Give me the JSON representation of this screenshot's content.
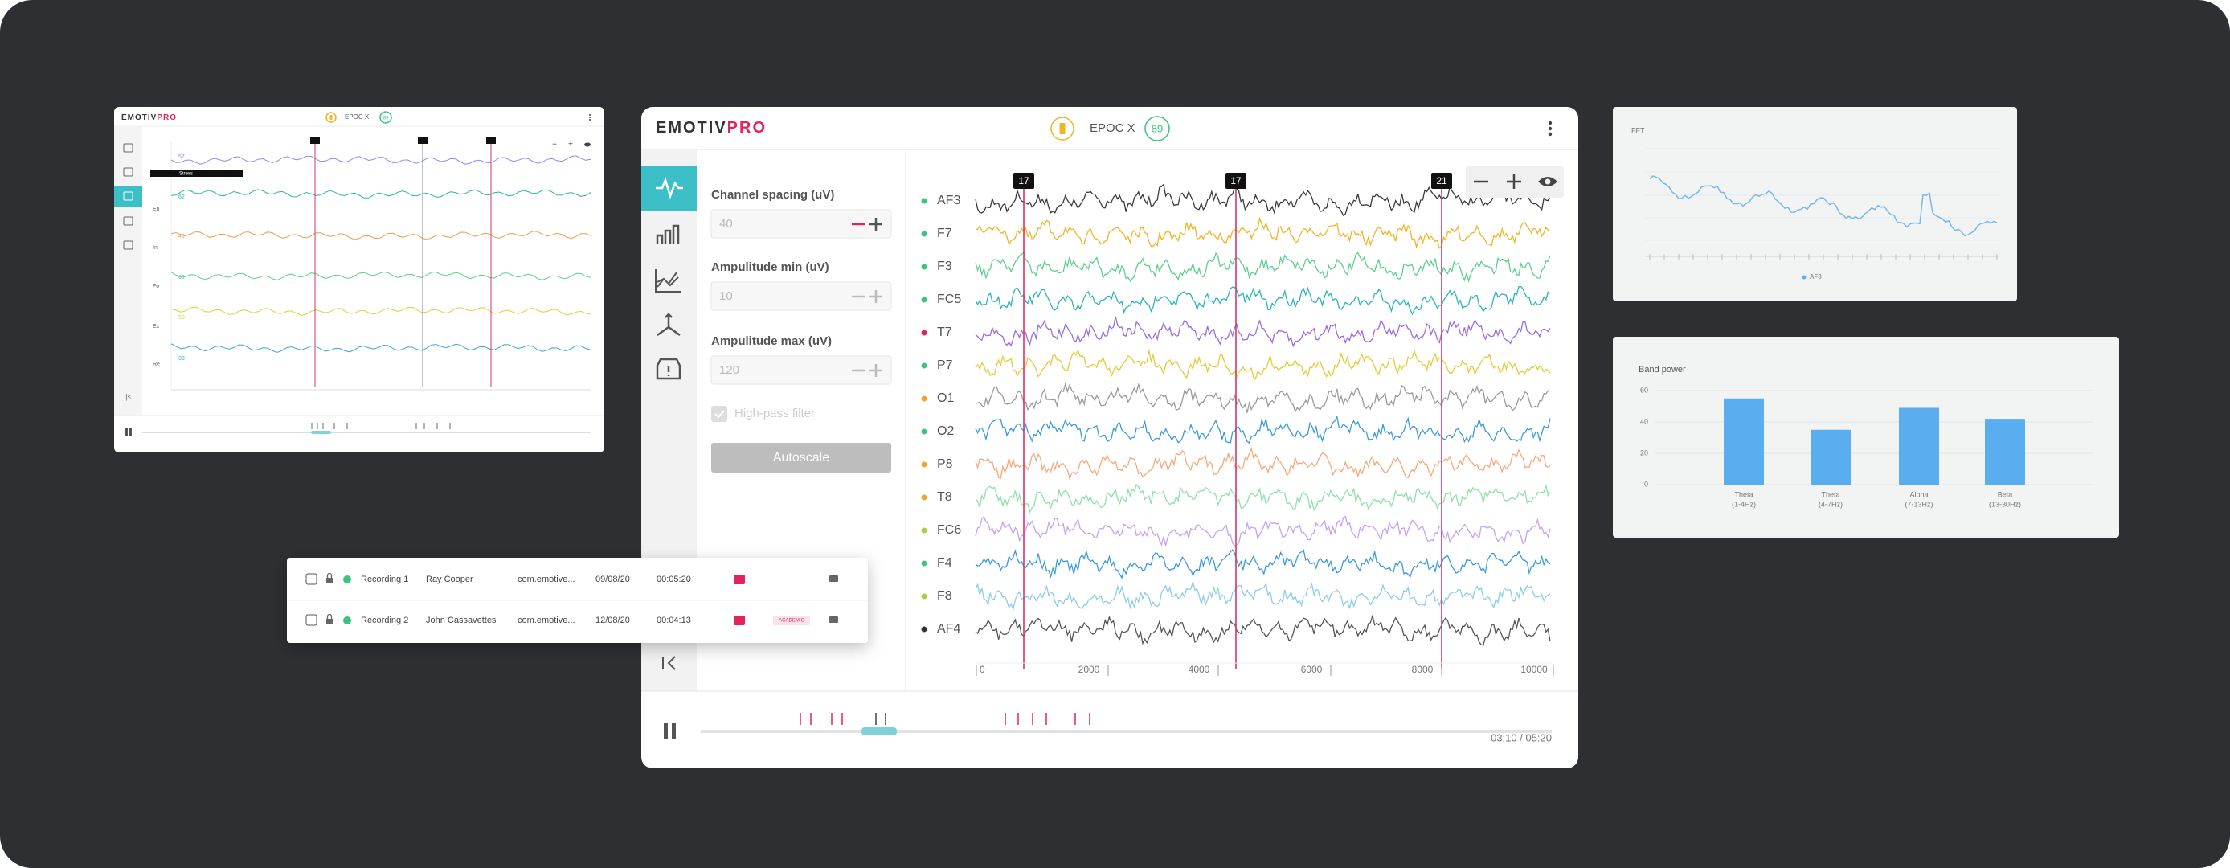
{
  "main_window": {
    "header": {
      "logo": "EMOTIV",
      "logo_accent": "PRO",
      "device": "EPOC X",
      "battery": "89"
    },
    "settings": {
      "channel_spacing": {
        "label": "Channel spacing (uV)",
        "value": "40"
      },
      "amplitude_min": {
        "label": "Ampulitude min (uV)",
        "value": "10"
      },
      "amplitude_max": {
        "label": "Ampulitude max (uV)",
        "value": "120"
      },
      "high_pass_filter": "High-pass filter",
      "autoscale": "Autoscale"
    },
    "channels": [
      {
        "name": "AF3",
        "color": "#3a3a3a",
        "dot": "#3ac47d"
      },
      {
        "name": "F7",
        "color": "#f0b429",
        "dot": "#3ac47d"
      },
      {
        "name": "F3",
        "color": "#5ccf8e",
        "dot": "#3ac47d"
      },
      {
        "name": "FC5",
        "color": "#2bb5b5",
        "dot": "#3ac47d"
      },
      {
        "name": "T7",
        "color": "#9a6de0",
        "dot": "#e0245e"
      },
      {
        "name": "P7",
        "color": "#e8c93a",
        "dot": "#3ac47d"
      },
      {
        "name": "O1",
        "color": "#9a9a9a",
        "dot": "#f0a429"
      },
      {
        "name": "O2",
        "color": "#3a9bd9",
        "dot": "#3ac47d"
      },
      {
        "name": "P8",
        "color": "#f4a97a",
        "dot": "#f0a429"
      },
      {
        "name": "T8",
        "color": "#8fe0a8",
        "dot": "#f0a429"
      },
      {
        "name": "FC6",
        "color": "#c5a3f0",
        "dot": "#a6d13a"
      },
      {
        "name": "F4",
        "color": "#3a9bd9",
        "dot": "#3ac47d"
      },
      {
        "name": "F8",
        "color": "#8ccde8",
        "dot": "#a6d13a"
      },
      {
        "name": "AF4",
        "color": "#555555",
        "dot": "#333333"
      }
    ],
    "markers": [
      "17",
      "17",
      "21"
    ],
    "x_axis": [
      "0",
      "2000",
      "4000",
      "6000",
      "8000",
      "10000"
    ],
    "time": "03:10 / 05:20"
  },
  "mini_window": {
    "header": {
      "logo": "EMOTIV",
      "logo_accent": "PRO",
      "device": "EPOC X",
      "battery": "89"
    },
    "tag": "Stress",
    "rows": [
      "En",
      "In",
      "Fo",
      "Ex",
      "Re"
    ],
    "metrics": [
      {
        "value": "57",
        "color": "#8c8cf0"
      },
      {
        "value": "62",
        "color": "#2bb5a5"
      },
      {
        "value": "49",
        "color": "#f09a4a"
      },
      {
        "value": "69",
        "color": "#5ccf8e"
      },
      {
        "value": "50",
        "color": "#e8c93a"
      },
      {
        "value": "33",
        "color": "#3aa9d9"
      }
    ]
  },
  "recordings": [
    {
      "name": "Recording 1",
      "subject": "Ray Cooper",
      "app": "com.emotive...",
      "date": "09/08/20",
      "duration": "00:05:20"
    },
    {
      "name": "Recording 2",
      "subject": "John Cassavettes",
      "app": "com.emotive...",
      "date": "12/08/20",
      "duration": "00:04:13",
      "tag": "ACADEMIC"
    }
  ],
  "fft": {
    "title": "FFT",
    "legend": "AF3"
  },
  "band_power": {
    "title": "Band power",
    "ylim": [
      0,
      60
    ],
    "yticks": [
      0,
      20,
      40,
      60
    ],
    "categories": [
      {
        "name": "Theta",
        "range": "(1-4Hz)"
      },
      {
        "name": "Theta",
        "range": "(4-7Hz)"
      },
      {
        "name": "Alpha",
        "range": "(7-13Hz)"
      },
      {
        "name": "Beta",
        "range": "(13-30Hz)"
      }
    ],
    "values": [
      55,
      35,
      49,
      42
    ],
    "color": "#5aaef0"
  }
}
